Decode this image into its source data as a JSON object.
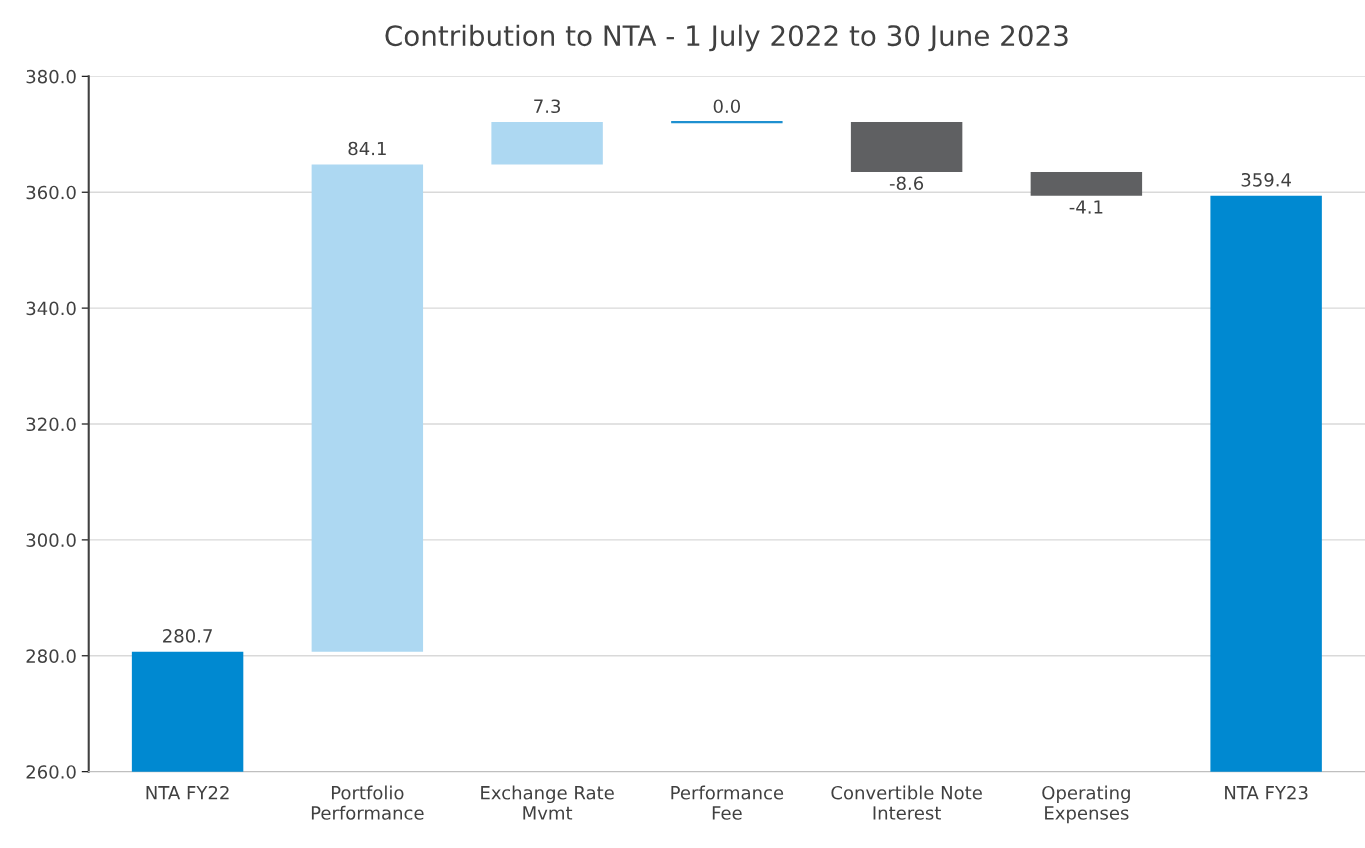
{
  "chart_data": {
    "type": "bar",
    "title": "Contribution to NTA - 1 July 2022 to 30 June 2023",
    "categories": [
      "NTA FY22",
      "Portfolio\nPerformance",
      "Exchange Rate\nMvmt",
      "Performance\nFee",
      "Convertible Note\nInterest",
      "Operating\nExpenses",
      "NTA FY23"
    ],
    "values": [
      280.7,
      84.1,
      7.3,
      0.0,
      -8.6,
      -4.1,
      359.4
    ],
    "base": [
      null,
      280.7,
      364.8,
      372.1,
      372.1,
      363.5,
      null
    ],
    "colors": [
      "#0089d1",
      "#add8f2",
      "#add8f2",
      "#1e90d0",
      "#5f6062",
      "#5f6062",
      "#0089d1"
    ],
    "value_labels": [
      "280.7",
      "84.1",
      "7.3",
      "0.0",
      "-8.6",
      "-4.1",
      "359.4"
    ],
    "ylim": [
      260,
      380
    ],
    "yticks": [
      {
        "value": 260,
        "label": "260.0"
      },
      {
        "value": 280,
        "label": "280.0"
      },
      {
        "value": 300,
        "label": "300.0"
      },
      {
        "value": 320,
        "label": "320.0"
      },
      {
        "value": 340,
        "label": "340.0"
      },
      {
        "value": 360,
        "label": "360.0"
      },
      {
        "value": 380,
        "label": "380.0"
      }
    ],
    "grid": "y"
  }
}
